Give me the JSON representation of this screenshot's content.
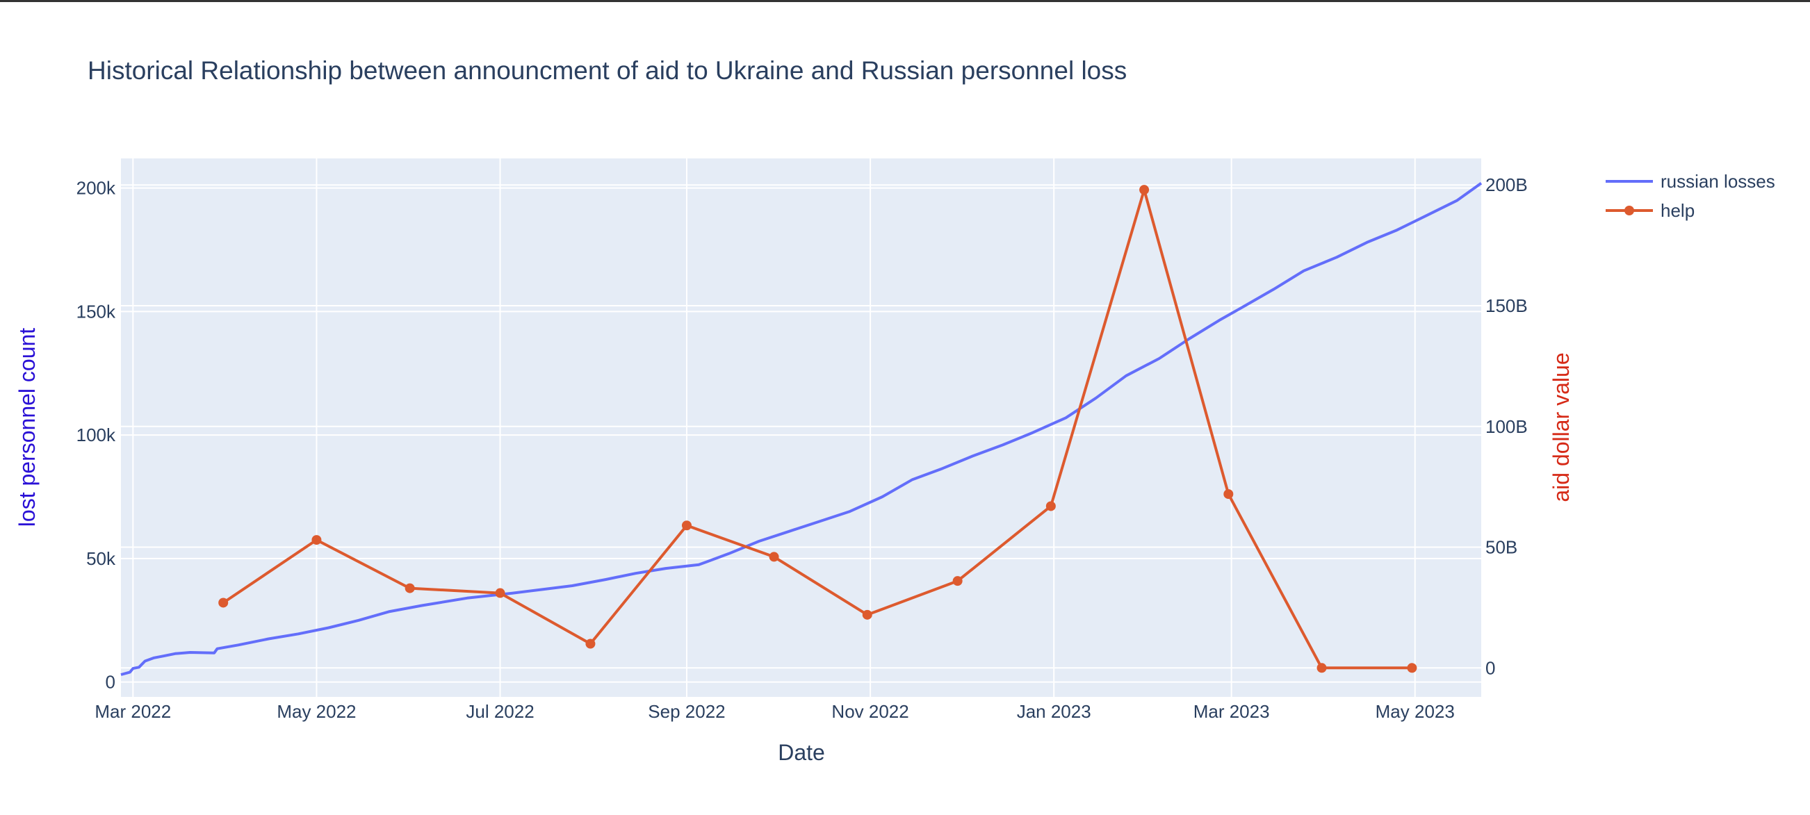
{
  "chart_data": {
    "type": "line",
    "title": "Historical Relationship between announcment of aid to Ukraine and Russian personnel loss",
    "xlabel": "Date",
    "ylabel": "lost personnel count",
    "y2label": "aid dollar value",
    "xlim": [
      "2022-02-25",
      "2023-05-23"
    ],
    "ylim": [
      -6000,
      212000
    ],
    "y2lim": [
      -12000000000,
      211000000000
    ],
    "x_ticks": [
      {
        "value": "2022-03-01",
        "label": "Mar 2022"
      },
      {
        "value": "2022-05-01",
        "label": "May 2022"
      },
      {
        "value": "2022-07-01",
        "label": "Jul 2022"
      },
      {
        "value": "2022-09-01",
        "label": "Sep 2022"
      },
      {
        "value": "2022-11-01",
        "label": "Nov 2022"
      },
      {
        "value": "2023-01-01",
        "label": "Jan 2023"
      },
      {
        "value": "2023-03-01",
        "label": "Mar 2023"
      },
      {
        "value": "2023-05-01",
        "label": "May 2023"
      }
    ],
    "y_ticks": [
      {
        "value": 0,
        "label": "0"
      },
      {
        "value": 50000,
        "label": "50k"
      },
      {
        "value": 100000,
        "label": "100k"
      },
      {
        "value": 150000,
        "label": "150k"
      },
      {
        "value": 200000,
        "label": "200k"
      }
    ],
    "y2_ticks": [
      {
        "value": 0,
        "label": "0"
      },
      {
        "value": 50000000000,
        "label": "50B"
      },
      {
        "value": 100000000000,
        "label": "100B"
      },
      {
        "value": 150000000000,
        "label": "150B"
      },
      {
        "value": 200000000000,
        "label": "200B"
      }
    ],
    "grid": true,
    "legend_position": "top-right",
    "series": [
      {
        "name": "russian losses",
        "axis": "y",
        "color": "#636efa",
        "markers": false,
        "x": [
          "2022-02-25",
          "2022-02-28",
          "2022-03-01",
          "2022-03-03",
          "2022-03-05",
          "2022-03-08",
          "2022-03-11",
          "2022-03-15",
          "2022-03-20",
          "2022-03-28",
          "2022-03-29",
          "2022-04-05",
          "2022-04-15",
          "2022-04-25",
          "2022-05-05",
          "2022-05-15",
          "2022-05-25",
          "2022-06-05",
          "2022-06-20",
          "2022-07-05",
          "2022-07-15",
          "2022-07-25",
          "2022-08-05",
          "2022-08-15",
          "2022-08-25",
          "2022-09-05",
          "2022-09-15",
          "2022-09-25",
          "2022-10-05",
          "2022-10-15",
          "2022-10-25",
          "2022-11-05",
          "2022-11-15",
          "2022-11-25",
          "2022-12-05",
          "2022-12-15",
          "2022-12-25",
          "2023-01-05",
          "2023-01-15",
          "2023-01-25",
          "2023-02-05",
          "2023-02-15",
          "2023-02-25",
          "2023-03-05",
          "2023-03-15",
          "2023-03-25",
          "2023-04-05",
          "2023-04-15",
          "2023-04-25",
          "2023-05-05",
          "2023-05-15",
          "2023-05-23"
        ],
        "y": [
          3000,
          4000,
          5500,
          6000,
          8500,
          9800,
          10500,
          11500,
          12000,
          11800,
          13500,
          15000,
          17500,
          19500,
          22000,
          25000,
          28500,
          31000,
          34000,
          36000,
          37500,
          39000,
          41500,
          44000,
          46000,
          47500,
          52000,
          57000,
          61000,
          65000,
          69000,
          75000,
          82000,
          86500,
          91500,
          96000,
          101000,
          107000,
          115000,
          124000,
          131000,
          139000,
          146500,
          152000,
          159000,
          166500,
          172000,
          178000,
          183000,
          189000,
          195000,
          202000
        ]
      },
      {
        "name": "help",
        "axis": "y2",
        "color": "#dd5a2e",
        "markers": true,
        "x": [
          "2022-03-31",
          "2022-05-01",
          "2022-06-01",
          "2022-07-01",
          "2022-07-31",
          "2022-09-01",
          "2022-09-30",
          "2022-10-31",
          "2022-11-30",
          "2022-12-31",
          "2023-01-31",
          "2023-02-28",
          "2023-03-31",
          "2023-04-30"
        ],
        "y": [
          27000000000,
          53000000000,
          33000000000,
          31000000000,
          10000000000,
          59000000000,
          46000000000,
          22000000000,
          36000000000,
          67000000000,
          198000000000,
          72000000000,
          0,
          0
        ]
      }
    ]
  },
  "legend": {
    "items": [
      {
        "label": "russian losses",
        "color": "#636efa",
        "marker": false
      },
      {
        "label": "help",
        "color": "#dd5a2e",
        "marker": true
      }
    ]
  },
  "colors": {
    "plot_background": "#e5ecf6",
    "grid": "#ffffff",
    "text": "#2a3f5f",
    "ylabel": "#2a11d6",
    "y2label": "#d62a17"
  }
}
